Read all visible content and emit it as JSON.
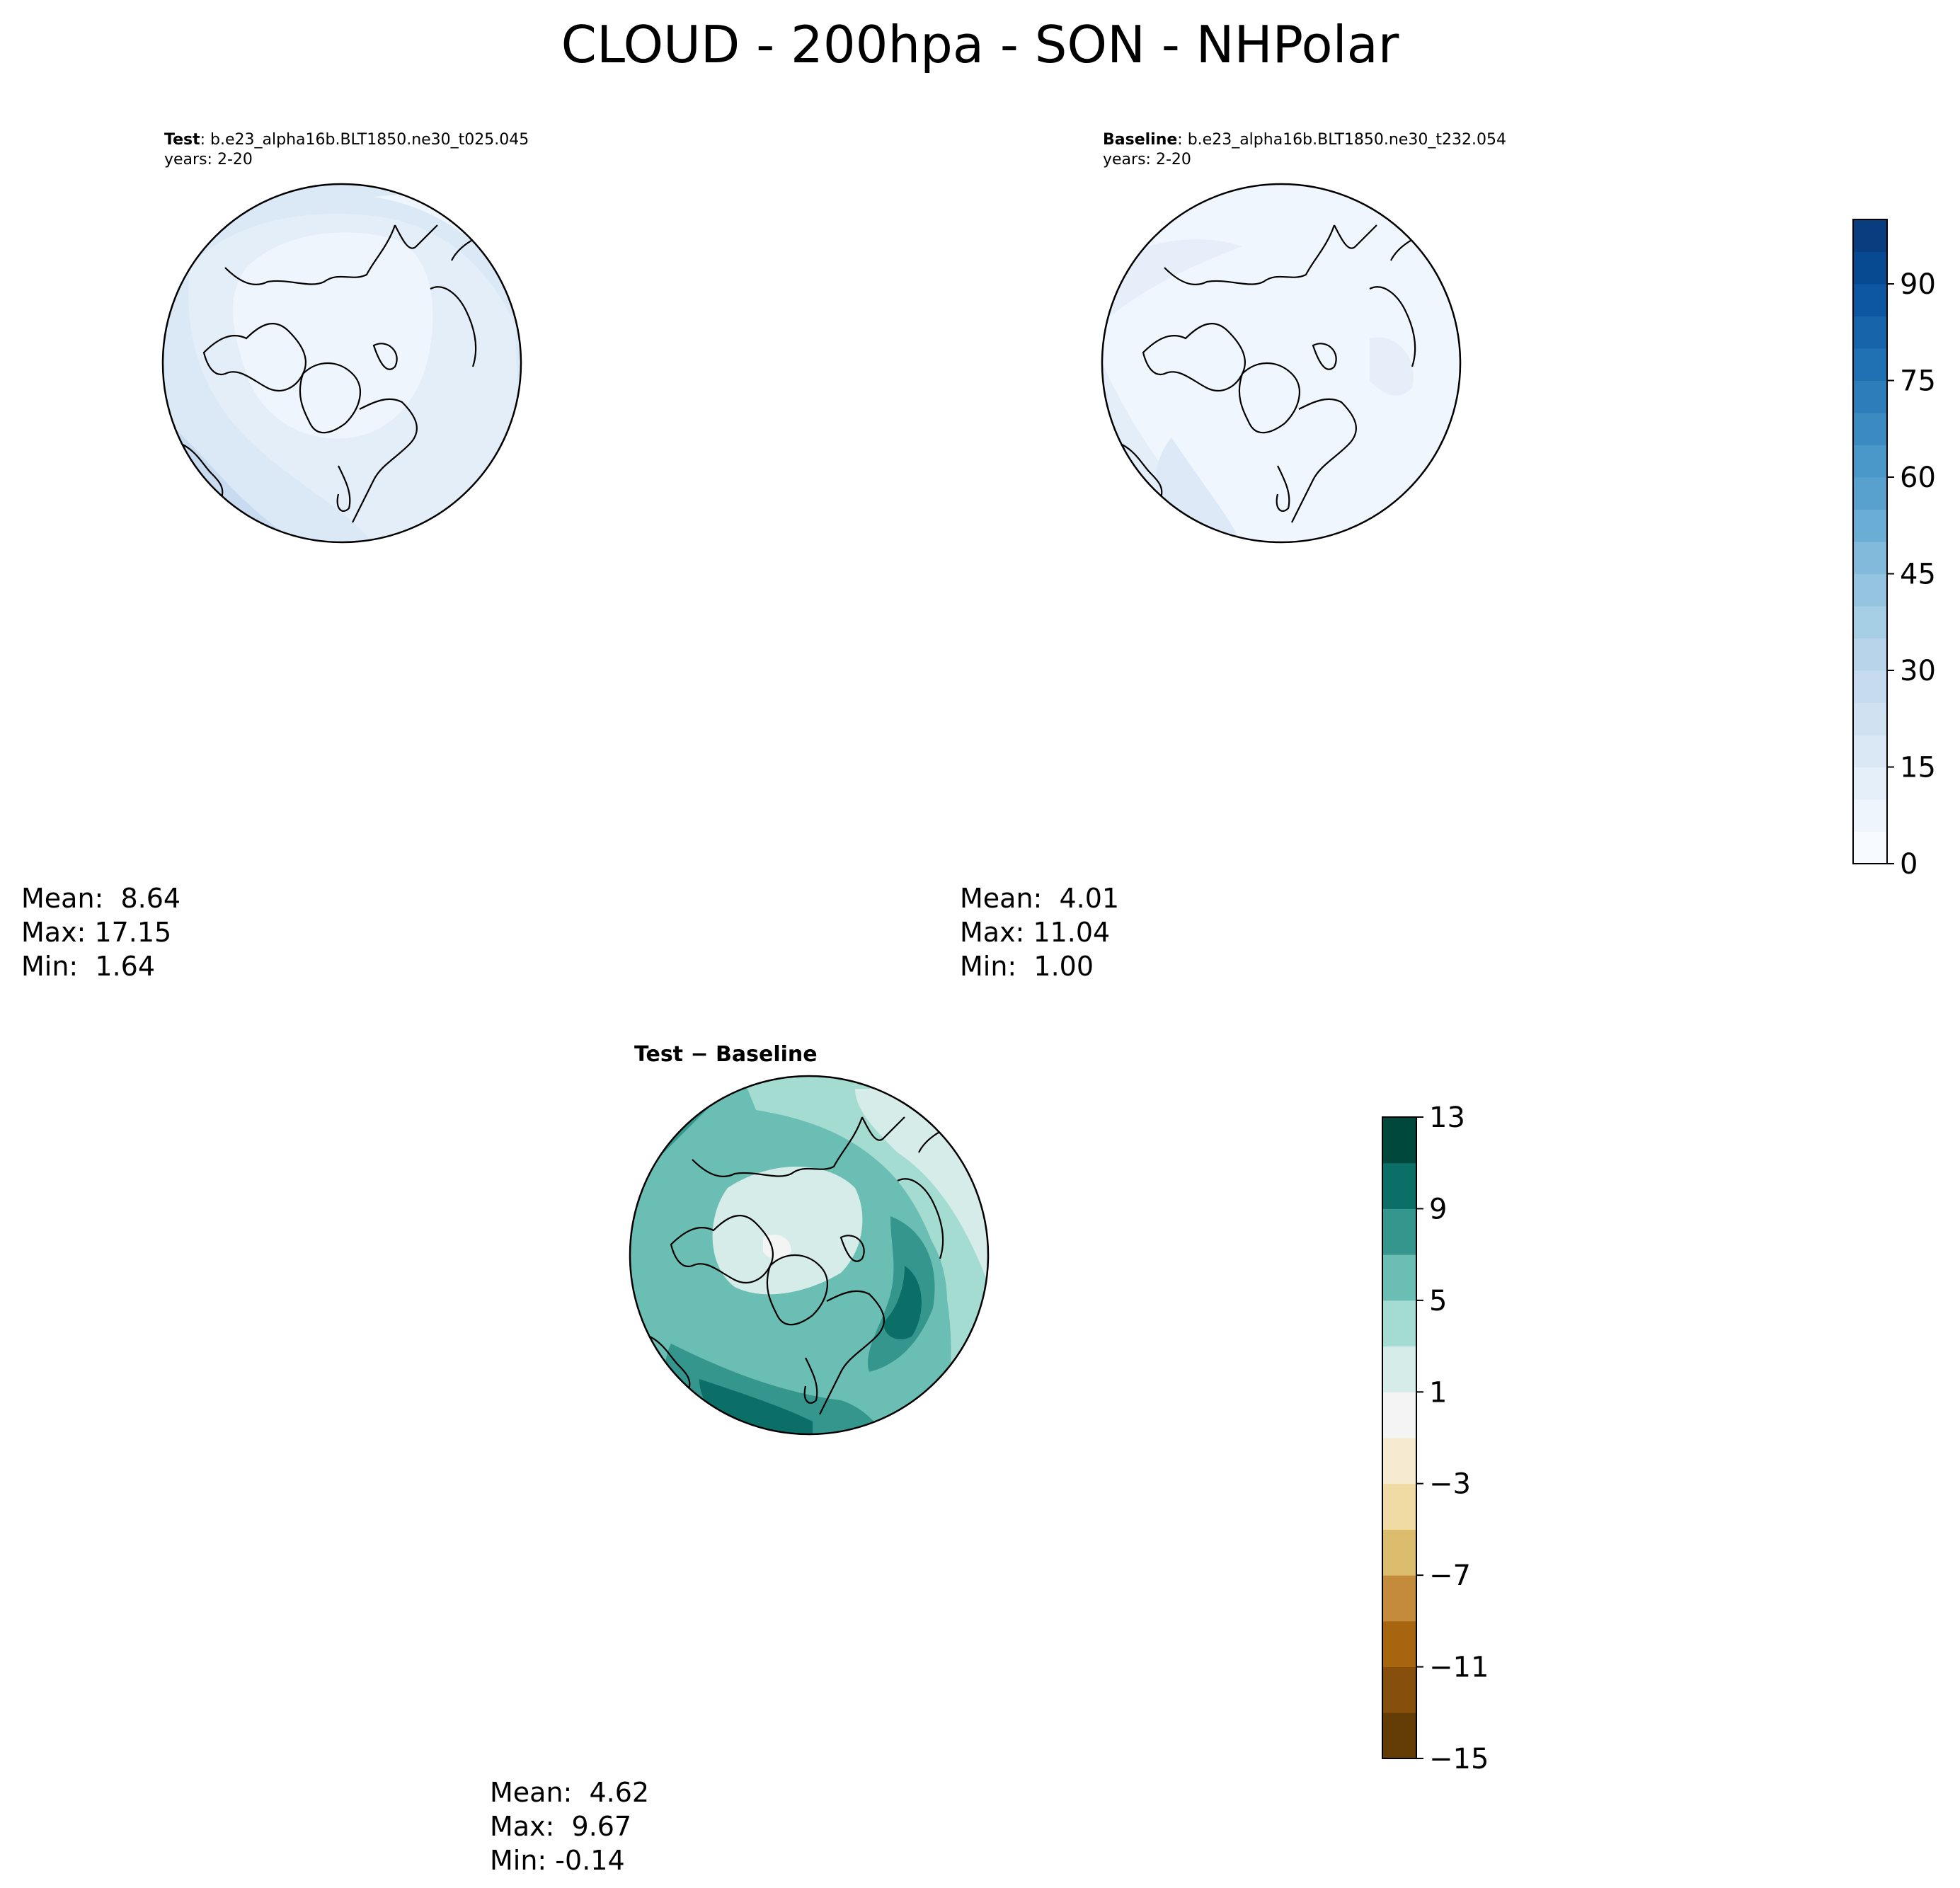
{
  "title": "CLOUD - 200hpa - SON - NHPolar",
  "panels": {
    "test": {
      "label_bold": "Test",
      "label_rest": ": b.e23_alpha16b.BLT1850.ne30_t025.045",
      "years": "years: 2-20",
      "stats": {
        "mean": "Mean:  8.64",
        "max": "Max: 17.15",
        "min": "Min:  1.64"
      }
    },
    "baseline": {
      "label_bold": "Baseline",
      "label_rest": ": b.e23_alpha16b.BLT1850.ne30_t232.054",
      "years": "years: 2-20",
      "stats": {
        "mean": "Mean:  4.01",
        "max": "Max: 11.04",
        "min": "Min:  1.00"
      }
    },
    "diff": {
      "label": "Test − Baseline",
      "stats": {
        "mean": "Mean:  4.62",
        "max": "Max:  9.67",
        "min": "Min: -0.14"
      }
    }
  },
  "colorbars": {
    "abs": {
      "ticks": [
        "0",
        "15",
        "30",
        "45",
        "60",
        "75",
        "90"
      ],
      "tick_values": [
        0,
        15,
        30,
        45,
        60,
        75,
        90
      ],
      "range": [
        0,
        100
      ],
      "colors": [
        "#f7fbff",
        "#eef5fd",
        "#e4effa",
        "#dae8f6",
        "#d0e1f2",
        "#c6dbef",
        "#b7d4ea",
        "#a6cee4",
        "#94c4df",
        "#81badb",
        "#6aaed6",
        "#58a1cf",
        "#4a98c9",
        "#3b8bc2",
        "#2d7dbb",
        "#2070b4",
        "#1764ab",
        "#0d57a1",
        "#084a91",
        "#083d7f"
      ]
    },
    "diff": {
      "ticks": [
        "13",
        "9",
        "5",
        "1",
        "−3",
        "−7",
        "−11",
        "−15"
      ],
      "tick_values": [
        13,
        9,
        5,
        1,
        -3,
        -7,
        -11,
        -15
      ],
      "range": [
        -15,
        13
      ],
      "colors": [
        "#643c06",
        "#864f0b",
        "#a8650f",
        "#c58b3d",
        "#dcbd6e",
        "#efdba3",
        "#f6ead0",
        "#f3f4f3",
        "#d5ece9",
        "#a4dcd2",
        "#6abeb3",
        "#35968e",
        "#0c6f67",
        "#00473c"
      ]
    }
  },
  "icons": [
    "polar-coastline-map"
  ]
}
